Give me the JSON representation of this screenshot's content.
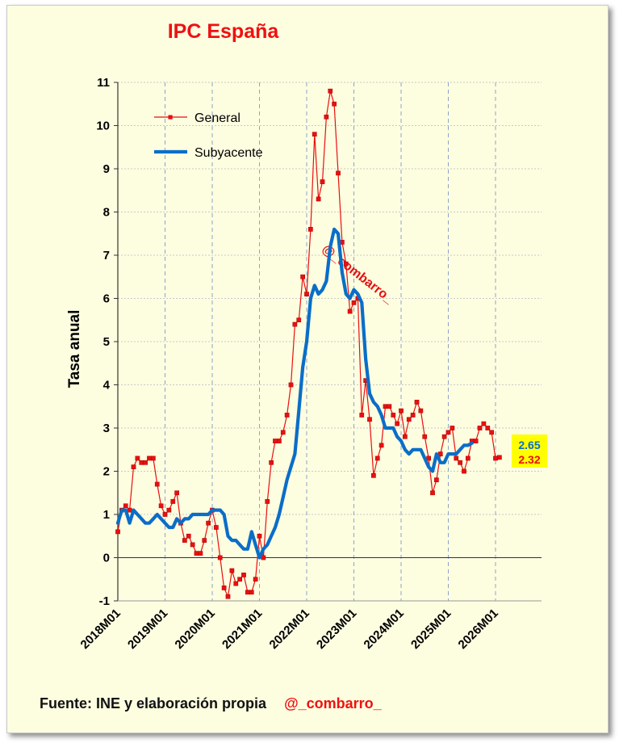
{
  "chart_data": {
    "type": "line",
    "title": "IPC España",
    "ylabel": "Tasa anual",
    "xlabel": "",
    "ylim": [
      -1,
      11
    ],
    "yticks": [
      -1,
      0,
      1,
      2,
      3,
      4,
      5,
      6,
      7,
      8,
      9,
      10,
      11
    ],
    "x_tick_labels": [
      "2018M01",
      "2019M01",
      "2020M01",
      "2021M01",
      "2022M01",
      "2023M01",
      "2024M01",
      "2025M01",
      "2026M01"
    ],
    "x_start": "2018M01",
    "grid": true,
    "legend": "top-left",
    "watermark": "@_combarro_",
    "series": [
      {
        "name": "General",
        "color": "#e81010",
        "marker": "square",
        "values": [
          0.6,
          1.1,
          1.2,
          1.1,
          2.1,
          2.3,
          2.2,
          2.2,
          2.3,
          2.3,
          1.7,
          1.2,
          1.0,
          1.1,
          1.3,
          1.5,
          0.8,
          0.4,
          0.5,
          0.3,
          0.1,
          0.1,
          0.4,
          0.8,
          1.1,
          0.7,
          0.0,
          -0.7,
          -0.9,
          -0.3,
          -0.6,
          -0.5,
          -0.4,
          -0.8,
          -0.8,
          -0.5,
          0.5,
          0.0,
          1.3,
          2.2,
          2.7,
          2.7,
          2.9,
          3.3,
          4.0,
          5.4,
          5.5,
          6.5,
          6.1,
          7.6,
          9.8,
          8.3,
          8.7,
          10.2,
          10.8,
          10.5,
          8.9,
          7.3,
          6.8,
          5.7,
          5.9,
          6.0,
          3.3,
          4.1,
          3.2,
          1.9,
          2.3,
          2.6,
          3.5,
          3.5,
          3.3,
          3.1,
          3.4,
          2.8,
          3.2,
          3.3,
          3.6,
          3.4,
          2.8,
          2.3,
          1.5,
          1.8,
          2.4,
          2.8,
          2.9,
          3.0,
          2.3,
          2.2,
          2.0,
          2.3,
          2.7,
          2.7,
          3.0,
          3.1,
          3.0,
          2.9,
          2.3,
          2.32
        ],
        "last_value_label": "2.32"
      },
      {
        "name": "Subyacente",
        "color": "#0a6ec8",
        "marker": "none",
        "values": [
          0.8,
          1.1,
          1.1,
          0.8,
          1.1,
          1.0,
          0.9,
          0.8,
          0.8,
          0.9,
          1.0,
          0.9,
          0.8,
          0.7,
          0.7,
          0.9,
          0.8,
          0.9,
          0.9,
          1.0,
          1.0,
          1.0,
          1.0,
          1.0,
          1.1,
          1.1,
          1.1,
          1.0,
          0.5,
          0.4,
          0.4,
          0.3,
          0.2,
          0.2,
          0.6,
          0.3,
          0.0,
          0.2,
          0.3,
          0.5,
          0.7,
          1.0,
          1.4,
          1.8,
          2.1,
          2.4,
          3.4,
          4.4,
          5.0,
          6.0,
          6.3,
          6.1,
          6.2,
          6.4,
          7.2,
          7.6,
          7.5,
          6.6,
          6.1,
          6.0,
          6.2,
          6.1,
          5.9,
          4.6,
          3.8,
          3.6,
          3.5,
          3.3,
          3.0,
          3.0,
          3.0,
          2.8,
          2.7,
          2.5,
          2.4,
          2.5,
          2.5,
          2.5,
          2.3,
          2.1,
          2.0,
          2.4,
          2.2,
          2.2,
          2.4,
          2.4,
          2.4,
          2.5,
          2.6,
          2.6,
          2.65
        ],
        "last_value_label": "2.65"
      }
    ]
  },
  "footer": {
    "source": "Fuente: INE y elaboración propia",
    "handle": "@_combarro_"
  }
}
